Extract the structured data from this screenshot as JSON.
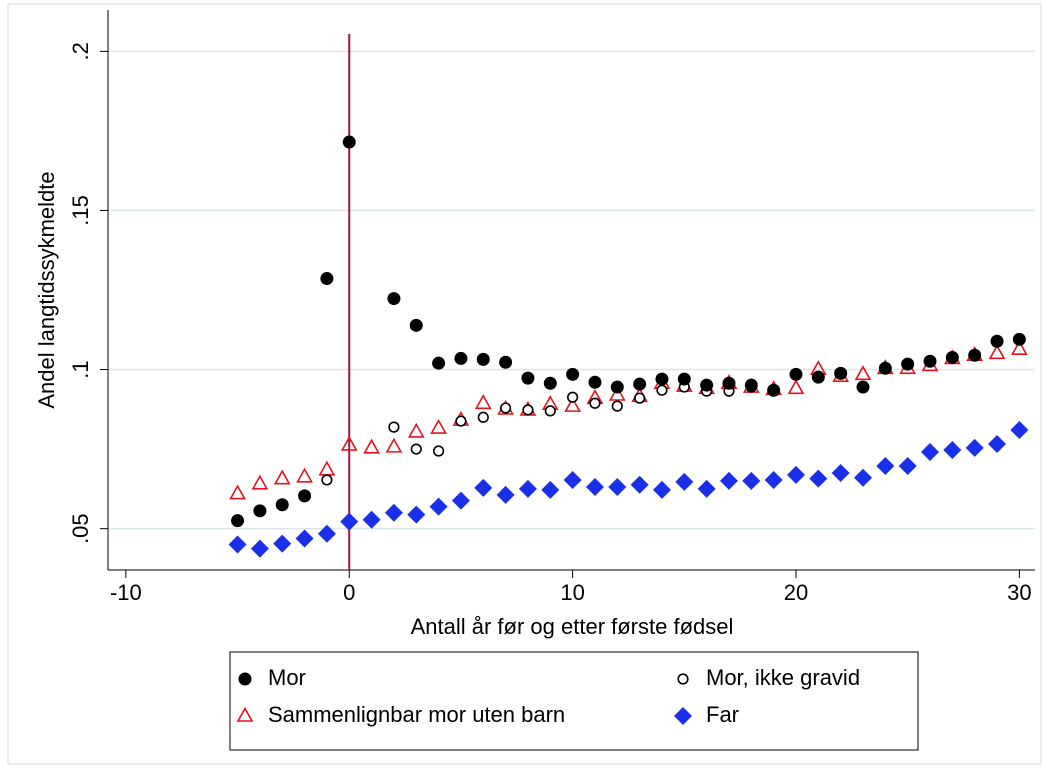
{
  "chart_data": {
    "type": "scatter",
    "x_label": "Antall år før og etter første fødsel",
    "y_label": "Andel langtidssykmeldte",
    "x": [
      -5,
      -4,
      -3,
      -2,
      -1,
      0,
      1,
      2,
      3,
      4,
      5,
      6,
      7,
      8,
      9,
      10,
      11,
      12,
      13,
      14,
      15,
      16,
      17,
      18,
      19,
      20,
      21,
      22,
      23,
      24,
      25,
      26,
      27,
      28,
      29,
      30
    ],
    "series": [
      {
        "name": "Sammenlignbar mor uten barn",
        "color": "#e8101e",
        "marker": "triangle",
        "values": [
          0.061,
          0.0641,
          0.0657,
          0.0663,
          0.0685,
          0.0763,
          0.0754,
          0.0757,
          0.0804,
          0.0816,
          0.0841,
          0.0894,
          0.0876,
          0.0873,
          0.0891,
          0.0885,
          0.091,
          0.092,
          0.0916,
          0.0957,
          0.0948,
          0.0941,
          0.0957,
          0.0945,
          0.0938,
          0.0941,
          0.1001,
          0.0979,
          0.0985,
          0.1004,
          0.1004,
          0.1013,
          0.1035,
          0.1045,
          0.1051,
          0.1064
        ]
      },
      {
        "name": "Mor, ikke gravid",
        "color": "#000000",
        "marker": "hollow-circle",
        "values": [
          0.0525,
          0.0556,
          0.0575,
          0.0603,
          0.0653,
          null,
          null,
          0.0819,
          0.075,
          0.0744,
          0.0838,
          0.085,
          0.0879,
          0.0873,
          0.087,
          0.0913,
          0.0894,
          0.0885,
          0.091,
          0.0935,
          0.0945,
          0.0932,
          0.0932,
          0.0945,
          0.0932,
          null,
          0.0976,
          0.0988,
          null,
          0.1004,
          0.1017,
          0.1026,
          0.1038,
          0.1045,
          null,
          null
        ]
      },
      {
        "name": "Mor",
        "color": "#000000",
        "marker": "circle",
        "values": [
          0.0525,
          0.0556,
          0.0575,
          0.0603,
          0.1286,
          0.1715,
          null,
          0.1223,
          0.1139,
          0.102,
          0.1035,
          0.1032,
          0.1023,
          0.0973,
          0.0957,
          0.0985,
          0.096,
          0.0945,
          0.0954,
          0.097,
          0.097,
          0.0951,
          0.0957,
          0.0951,
          0.0935,
          0.0985,
          0.0976,
          0.0988,
          0.0945,
          0.1004,
          0.1017,
          0.1026,
          0.1038,
          0.1045,
          0.1089,
          0.1095
        ]
      },
      {
        "name": "Far",
        "color": "#1a2fe8",
        "marker": "diamond",
        "values": [
          0.045,
          0.0437,
          0.0453,
          0.0469,
          0.0484,
          0.0522,
          0.0528,
          0.055,
          0.0544,
          0.0569,
          0.0588,
          0.0628,
          0.0606,
          0.0625,
          0.0622,
          0.0653,
          0.0631,
          0.0631,
          0.0638,
          0.0622,
          0.0647,
          0.0625,
          0.065,
          0.065,
          0.0653,
          0.0669,
          0.0657,
          0.0675,
          0.066,
          0.0697,
          0.0697,
          0.0741,
          0.0747,
          0.0754,
          0.0766,
          0.081
        ]
      }
    ],
    "legend_order": [
      2,
      1,
      0,
      3
    ],
    "xlim": [
      -10.8,
      30.7
    ],
    "ylim": [
      0.037,
      0.213
    ],
    "xticks": [
      -10,
      0,
      10,
      20,
      30
    ],
    "yticks": [
      {
        "value": 0.05,
        "label": ".05"
      },
      {
        "value": 0.1,
        "label": ".1"
      },
      {
        "value": 0.15,
        "label": ".15"
      },
      {
        "value": 0.2,
        "label": ".2"
      }
    ],
    "vline": 0,
    "vline_color": "#a0153e",
    "grid": true
  }
}
